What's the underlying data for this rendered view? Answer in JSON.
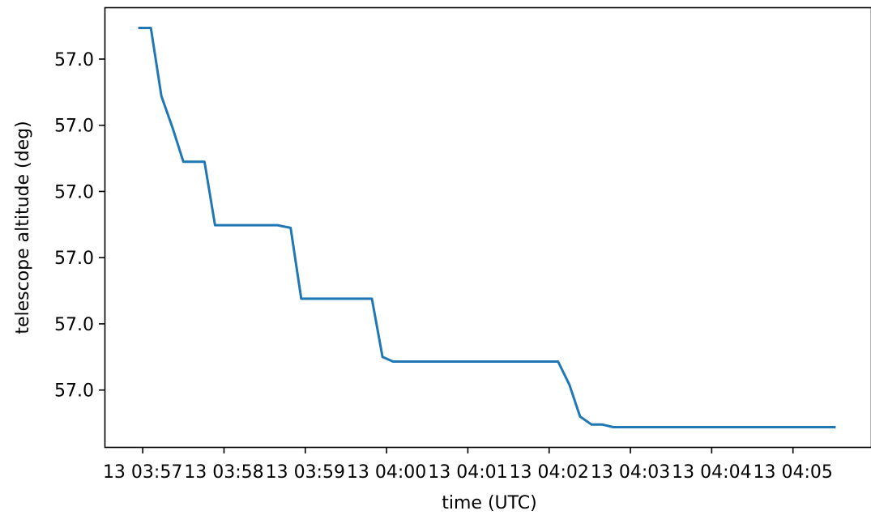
{
  "chart_data": {
    "type": "line",
    "title": "",
    "xlabel": "time (UTC)",
    "ylabel": "telescope altitude (deg)",
    "grid": false,
    "legend": "none",
    "x_ticks": [
      {
        "label": "13 03:57",
        "minutes": 0
      },
      {
        "label": "13 03:58",
        "minutes": 1
      },
      {
        "label": "13 03:59",
        "minutes": 2
      },
      {
        "label": "13 04:00",
        "minutes": 3
      },
      {
        "label": "13 04:01",
        "minutes": 4
      },
      {
        "label": "13 04:02",
        "minutes": 5
      },
      {
        "label": "13 04:03",
        "minutes": 6
      },
      {
        "label": "13 04:04",
        "minutes": 7
      },
      {
        "label": "13 04:05",
        "minutes": 8
      }
    ],
    "y_ticks": [
      {
        "label": "57.0",
        "level": 5
      },
      {
        "label": "57.0",
        "level": 4
      },
      {
        "label": "57.0",
        "level": 3
      },
      {
        "label": "57.0",
        "level": 2
      },
      {
        "label": "57.0",
        "level": 1
      },
      {
        "label": "57.0",
        "level": 0
      }
    ],
    "xlim_minutes": [
      -0.46,
      8.96
    ],
    "ylim_levels": [
      -0.86,
      5.77
    ],
    "series": [
      {
        "color": "#1f77b4",
        "points": [
          [
            -0.04,
            5.47
          ],
          [
            0.1,
            5.47
          ],
          [
            0.23,
            4.44
          ],
          [
            0.37,
            3.95
          ],
          [
            0.5,
            3.45
          ],
          [
            0.76,
            3.45
          ],
          [
            0.89,
            2.49
          ],
          [
            1.66,
            2.49
          ],
          [
            1.7,
            2.48
          ],
          [
            1.82,
            2.45
          ],
          [
            1.95,
            1.38
          ],
          [
            2.82,
            1.38
          ],
          [
            2.95,
            0.5
          ],
          [
            3.08,
            0.43
          ],
          [
            5.11,
            0.43
          ],
          [
            5.25,
            0.08
          ],
          [
            5.38,
            -0.4
          ],
          [
            5.52,
            -0.52
          ],
          [
            5.65,
            -0.52
          ],
          [
            5.79,
            -0.56
          ],
          [
            8.51,
            -0.56
          ]
        ]
      }
    ]
  }
}
